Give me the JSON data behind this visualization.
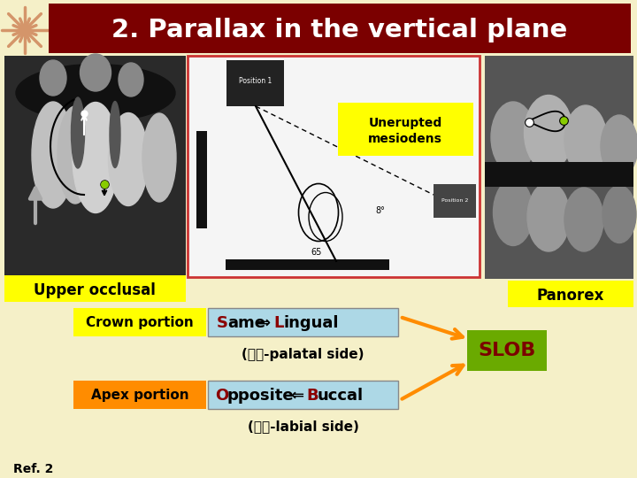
{
  "bg_color": "#f5f0c8",
  "title": "2. Parallax in the vertical plane",
  "title_bg": "#7b0000",
  "title_color": "#ffffff",
  "upper_occlusal_label": "Upper occlusal",
  "upper_occlusal_label_bg": "#ffff00",
  "panorex_label": "Panorex",
  "panorex_label_bg": "#ffff00",
  "unerupted_label": "Unerupted\nmesiodens",
  "unerupted_label_bg": "#ffff00",
  "crown_label": "Crown portion",
  "crown_label_bg": "#ffff00",
  "crown_text_bg": "#add8e6",
  "apex_label": "Apex portion",
  "apex_label_bg": "#ff8c00",
  "apex_text_bg": "#add8e6",
  "slob_text": "SLOB",
  "slob_bg": "#6aaa00",
  "slob_color": "#7b0000",
  "ref_text": "Ref. 2",
  "arrow_color": "#ff8c00"
}
